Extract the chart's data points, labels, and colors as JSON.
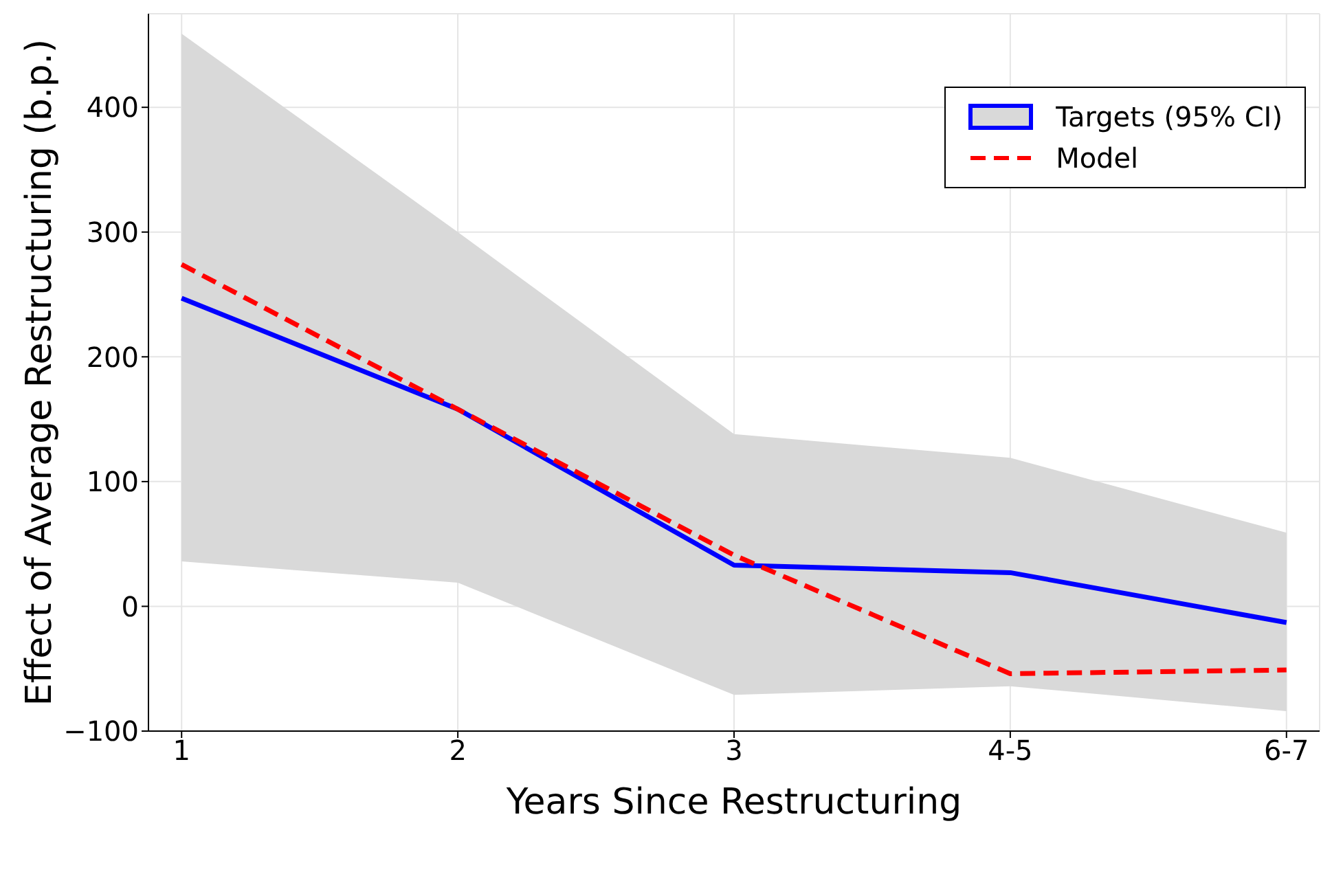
{
  "chart_data": {
    "type": "line",
    "xlabel": "Years Since Restructuring",
    "ylabel": "Effect of Average Restructuring (b.p.)",
    "categories": [
      "1",
      "2",
      "3",
      "4-5",
      "6-7"
    ],
    "series": [
      {
        "name": "Targets (95% CI)",
        "color": "#0000ff",
        "line_style": "solid",
        "values": [
          247,
          158,
          33,
          27,
          -13
        ],
        "lower": [
          36,
          19,
          -71,
          -64,
          -84
        ],
        "upper": [
          459,
          300,
          138,
          119,
          59
        ]
      },
      {
        "name": "Model",
        "color": "#ff0000",
        "line_style": "dashed",
        "values": [
          274,
          158,
          41,
          -54,
          -51
        ]
      }
    ],
    "ylim": [
      -100,
      475
    ],
    "yticks": [
      {
        "value": -100,
        "label": "−100"
      },
      0,
      100,
      200,
      300,
      400
    ],
    "grid": true,
    "legend": "top right",
    "marker": "none"
  }
}
